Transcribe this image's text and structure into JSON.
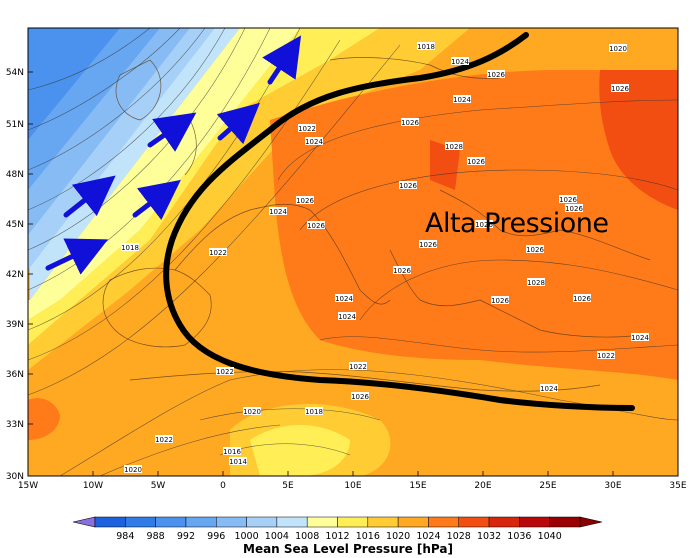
{
  "map": {
    "lat_ticks": [
      "54N",
      "51N",
      "48N",
      "45N",
      "42N",
      "39N",
      "36N",
      "33N",
      "30N"
    ],
    "lon_ticks": [
      "15W",
      "10W",
      "5W",
      "0",
      "5E",
      "10E",
      "15E",
      "20E",
      "25E",
      "30E",
      "35E"
    ],
    "annotation": "Alta Pressione",
    "isobar_labels": [
      {
        "text": "1018"
      },
      {
        "text": "1020"
      },
      {
        "text": "1024"
      },
      {
        "text": "1026"
      },
      {
        "text": "1026"
      },
      {
        "text": "1024"
      },
      {
        "text": "1022"
      },
      {
        "text": "1024"
      },
      {
        "text": "1026"
      },
      {
        "text": "1028"
      },
      {
        "text": "1026"
      },
      {
        "text": "1026"
      },
      {
        "text": "1024"
      },
      {
        "text": "1026"
      },
      {
        "text": "1026"
      },
      {
        "text": "1026"
      },
      {
        "text": "1018"
      },
      {
        "text": "1026"
      },
      {
        "text": "1022"
      },
      {
        "text": "1026"
      },
      {
        "text": "1026"
      },
      {
        "text": "1028"
      },
      {
        "text": "1026"
      },
      {
        "text": "1024"
      },
      {
        "text": "1026"
      },
      {
        "text": "1026"
      },
      {
        "text": "1022"
      },
      {
        "text": "1024"
      },
      {
        "text": "1022"
      },
      {
        "text": "1022"
      },
      {
        "text": "1026"
      },
      {
        "text": "1024"
      },
      {
        "text": "1020"
      },
      {
        "text": "1018"
      },
      {
        "text": "1022"
      },
      {
        "text": "1016"
      },
      {
        "text": "1014"
      },
      {
        "text": "1020"
      },
      {
        "text": "1026"
      },
      {
        "text": "1024"
      }
    ]
  },
  "colorbar": {
    "title": "Mean Sea Level Pressure [hPa]",
    "levels": [
      "984",
      "988",
      "992",
      "996",
      "1000",
      "1004",
      "1008",
      "1012",
      "1016",
      "1020",
      "1024",
      "1028",
      "1032",
      "1036",
      "1040"
    ],
    "colors": [
      "#1b63de",
      "#2f7ce8",
      "#4a92ee",
      "#67a6f1",
      "#87bbf4",
      "#a6d0f7",
      "#c2e4fa",
      "#ffff9a",
      "#ffee55",
      "#ffcc33",
      "#ffa822",
      "#ff7a18",
      "#f24e12",
      "#d8260c",
      "#b8080a",
      "#9a0000"
    ],
    "under_color": "#8a6fe0",
    "over_color": "#8a0000"
  }
}
